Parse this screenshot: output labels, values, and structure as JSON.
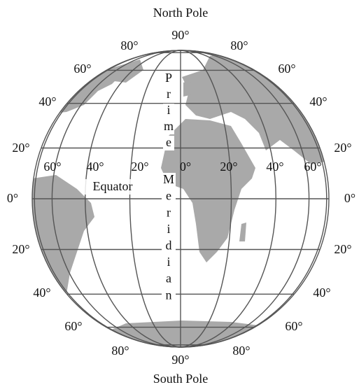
{
  "top_label": "North Pole",
  "bottom_label": "South Pole",
  "equator_label": "Equator",
  "prime_meridian": {
    "word1": [
      "P",
      "r",
      "i",
      "m",
      "e"
    ],
    "word2": [
      "M",
      "e",
      "r",
      "i",
      "d",
      "i",
      "a",
      "n"
    ]
  },
  "latitude_labels": {
    "top": "90°",
    "bottom": "90°",
    "north_left": [
      "80°",
      "60°",
      "40°",
      "20°"
    ],
    "north_right": [
      "80°",
      "60°",
      "40°",
      "20°"
    ],
    "equator_left": "0°",
    "equator_right": "0°",
    "south_left": [
      "20°",
      "40°",
      "60°",
      "80°"
    ],
    "south_right": [
      "20°",
      "40°",
      "60°",
      "80°"
    ]
  },
  "longitude_labels": [
    "60°",
    "40°",
    "20°",
    "0°",
    "20°",
    "40°",
    "60°"
  ]
}
